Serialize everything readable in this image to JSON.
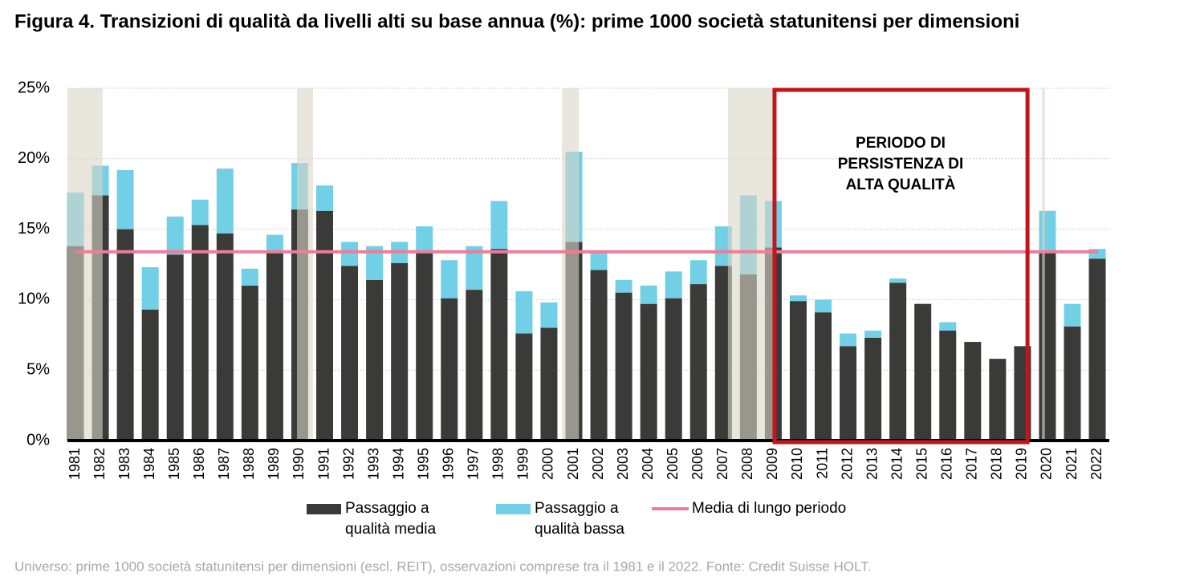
{
  "chart_data": {
    "type": "stacked_bar",
    "title": "Figura 4. Transizioni di qualità da livelli alti su base annua (%): prime 1000 società statunitensi per dimensioni",
    "footnote": "Universo: prime 1000 società statunitensi per dimensioni (escl. REIT), osservazioni comprese tra il 1981 e il 2022. Fonte: Credit Suisse HOLT.",
    "x": [
      1981,
      1982,
      1983,
      1984,
      1985,
      1986,
      1987,
      1988,
      1989,
      1990,
      1991,
      1992,
      1993,
      1994,
      1995,
      1996,
      1997,
      1998,
      1999,
      2000,
      2001,
      2002,
      2003,
      2004,
      2005,
      2006,
      2007,
      2008,
      2009,
      2010,
      2011,
      2012,
      2013,
      2014,
      2015,
      2016,
      2017,
      2018,
      2019,
      2020,
      2021,
      2022
    ],
    "series": [
      {
        "name": "Passaggio a qualità media",
        "color": "#3a3a38",
        "values": [
          13.8,
          17.4,
          15.0,
          9.3,
          13.2,
          15.3,
          14.7,
          11.0,
          13.3,
          16.4,
          16.3,
          12.4,
          11.4,
          12.6,
          13.3,
          10.1,
          10.7,
          13.6,
          7.6,
          8.0,
          14.1,
          12.1,
          10.5,
          9.7,
          10.1,
          11.1,
          12.4,
          11.8,
          13.7,
          9.9,
          9.1,
          6.7,
          7.3,
          11.2,
          9.7,
          7.8,
          7.0,
          5.8,
          6.7,
          13.3,
          8.1,
          12.9
        ]
      },
      {
        "name": "Passaggio a qualità bassa",
        "color": "#72d0e6",
        "values": [
          3.8,
          2.1,
          4.2,
          3.0,
          2.7,
          1.8,
          4.6,
          1.2,
          1.3,
          3.3,
          1.8,
          1.7,
          2.4,
          1.5,
          1.9,
          2.7,
          3.1,
          3.4,
          3.0,
          1.8,
          6.4,
          1.2,
          0.9,
          1.3,
          1.9,
          1.7,
          2.8,
          5.6,
          3.3,
          0.4,
          0.9,
          0.9,
          0.5,
          0.3,
          0,
          0.6,
          0,
          0,
          0,
          3.0,
          1.6,
          0.7
        ]
      }
    ],
    "reference_line": {
      "name": "Media di lungo periodo",
      "value": 13.4,
      "color": "#f07c98"
    },
    "shaded_spans": [
      [
        1980.68,
        1982.09
      ],
      [
        1989.89,
        1990.53
      ],
      [
        2000.52,
        2001.2
      ],
      [
        2007.18,
        2009.05
      ],
      [
        2019.78,
        2019.9
      ]
    ],
    "shade_color": "#d9d5c6",
    "highlight": {
      "lines": [
        "PERIODO DI",
        "PERSISTENZA DI",
        "ALTA QUALITÀ"
      ],
      "from": 2009.05,
      "to": 2019.2,
      "color": "#c0161d"
    },
    "ylim": [
      0,
      25
    ],
    "yticks": [
      {
        "value": 0,
        "label": "0%"
      },
      {
        "value": 5,
        "label": "5%"
      },
      {
        "value": 10,
        "label": "10%"
      },
      {
        "value": 15,
        "label": "15%"
      },
      {
        "value": 20,
        "label": "20%"
      },
      {
        "value": 25,
        "label": "25%"
      }
    ],
    "grid": true
  }
}
